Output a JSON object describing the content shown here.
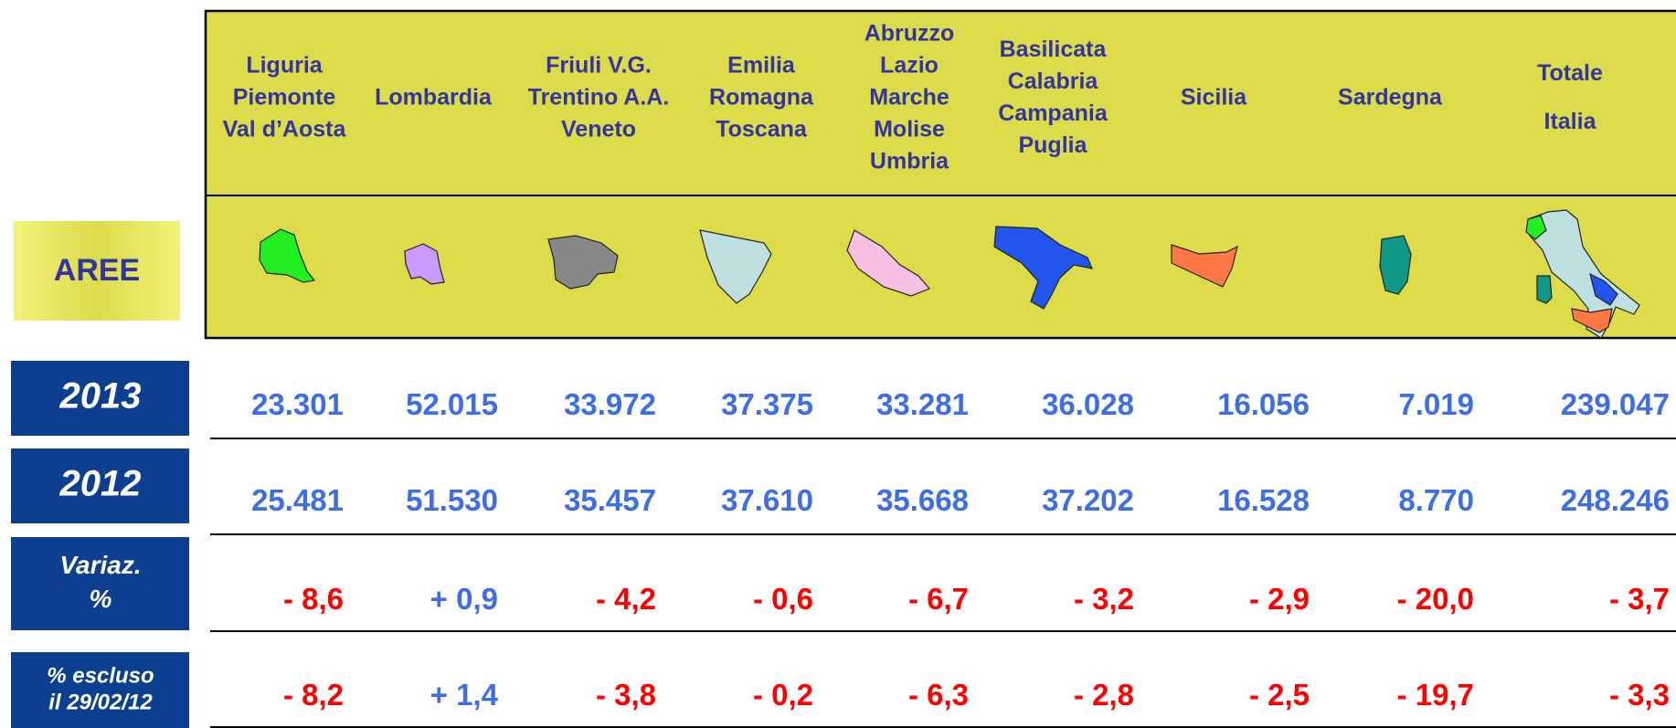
{
  "header_label": "AREE",
  "columns": [
    [
      "Liguria",
      "Piemonte",
      "Val d’Aosta"
    ],
    [
      "Lombardia"
    ],
    [
      "Friuli V.G.",
      "Trentino A.A.",
      "Veneto"
    ],
    [
      "Emilia",
      "Romagna",
      "Toscana"
    ],
    [
      "Abruzzo",
      "Lazio",
      "Marche",
      "Molise",
      "Umbria"
    ],
    [
      "Basilicata",
      "Calabria",
      "Campania",
      "Puglia"
    ],
    [
      "Sicilia"
    ],
    [
      "Sardegna"
    ],
    [
      "Totale",
      "Italia"
    ]
  ],
  "positive_color": "#3d6ee6",
  "negative_color": "#ff0000",
  "rows": [
    {
      "label": [
        "2013"
      ],
      "values": [
        "23.301",
        "52.015",
        "33.972",
        "37.375",
        "33.281",
        "36.028",
        "16.056",
        "7.019",
        "239.047"
      ]
    },
    {
      "label": [
        "2012"
      ],
      "values": [
        "25.481",
        "51.530",
        "35.457",
        "37.610",
        "35.668",
        "37.202",
        "16.528",
        "8.770",
        "248.246"
      ]
    },
    {
      "label": [
        "Variaz.",
        "%"
      ],
      "values": [
        "- 8,6",
        "+ 0,9",
        "- 4,2",
        "- 0,6",
        "- 6,7",
        "- 3,2",
        "- 2,9",
        "- 20,0",
        "- 3,7"
      ]
    },
    {
      "label": [
        "% escluso",
        "il 29/02/12"
      ],
      "values": [
        "- 8,2",
        "+ 1,4",
        "- 3,8",
        "- 0,2",
        "- 6,3",
        "- 2,8",
        "- 2,5",
        "- 19,7",
        "- 3,3"
      ]
    }
  ]
}
